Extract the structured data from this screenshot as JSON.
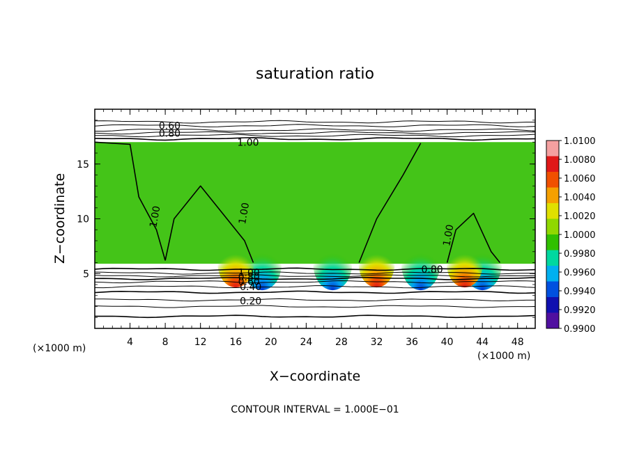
{
  "chart_data": {
    "type": "heatmap",
    "title": "saturation ratio",
    "xlabel": "X−coordinate",
    "ylabel": "Z−coordinate",
    "x_unit_left": "(×1000 m)",
    "x_unit_right": "(×1000 m)",
    "footer": "CONTOUR INTERVAL = 1.000E−01",
    "xlim": [
      0,
      50
    ],
    "ylim": [
      0,
      20
    ],
    "x_ticks": [
      "4",
      "8",
      "12",
      "16",
      "20",
      "24",
      "28",
      "32",
      "36",
      "40",
      "44",
      "48"
    ],
    "y_ticks": [
      "5",
      "10",
      "15"
    ],
    "colorbar_ticks": [
      "1.0100",
      "1.0080",
      "1.0060",
      "1.0040",
      "1.0020",
      "1.0000",
      "0.9980",
      "0.9960",
      "0.9940",
      "0.9920",
      "0.9900"
    ],
    "colorbar_colors": [
      "#f4a0a0",
      "#e01818",
      "#f05000",
      "#f5a000",
      "#e0e000",
      "#90d800",
      "#30c000",
      "#00d8a0",
      "#00b0f0",
      "#0050e0",
      "#1010b0",
      "#5010a0"
    ],
    "contour_labels": [
      "0.60",
      "0.80",
      "1.00",
      "1.00",
      "1.00",
      "1.00",
      "1.00",
      "0.80",
      "0.60",
      "0.40",
      "0.20",
      "0.80"
    ],
    "contour_levels_below_layer": [
      5.4,
      5.05,
      4.8,
      4.55,
      4.25,
      3.8,
      3.3,
      2.6,
      2.0,
      1.1
    ],
    "contour_levels_above_layer": [
      17.3,
      17.6,
      17.85,
      18.1,
      18.5,
      18.85
    ],
    "moist_layer": {
      "z_bottom": 5.9,
      "z_top": 17.0
    },
    "hot_spots_x": [
      16,
      32,
      42
    ],
    "cold_spots_x": [
      19,
      27,
      37,
      44
    ]
  }
}
